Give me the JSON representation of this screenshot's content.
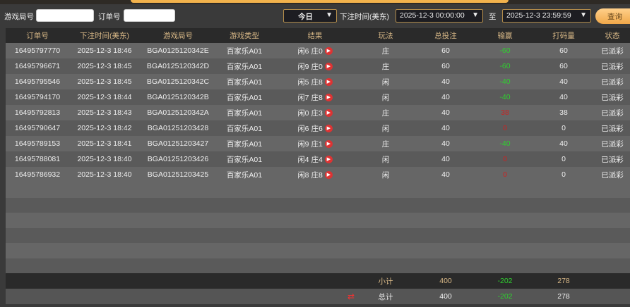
{
  "filters": {
    "round_label": "游戏局号",
    "round_value": "",
    "order_label": "订单号",
    "order_value": "",
    "period": "今日",
    "time_label": "下注时间(美东)",
    "start": "2025-12-3 00:00:00",
    "to_label": "至",
    "end": "2025-12-3 23:59:59",
    "query_button": "查询"
  },
  "columns": [
    "订单号",
    "下注时间(美东)",
    "游戏局号",
    "游戏类型",
    "结果",
    "玩法",
    "总投注",
    "输赢",
    "打码量",
    "状态"
  ],
  "rows": [
    [
      "16495797770",
      "2025-12-3 18:46",
      "BGA0125120342E",
      "百家乐A01",
      "闲6 庄0",
      "庄",
      "60",
      "-60",
      "60",
      "已派彩"
    ],
    [
      "16495796671",
      "2025-12-3 18:45",
      "BGA0125120342D",
      "百家乐A01",
      "闲9 庄0",
      "庄",
      "60",
      "-60",
      "60",
      "已派彩"
    ],
    [
      "16495795546",
      "2025-12-3 18:45",
      "BGA0125120342C",
      "百家乐A01",
      "闲5 庄8",
      "闲",
      "40",
      "-40",
      "40",
      "已派彩"
    ],
    [
      "16495794170",
      "2025-12-3 18:44",
      "BGA0125120342B",
      "百家乐A01",
      "闲7 庄8",
      "闲",
      "40",
      "-40",
      "40",
      "已派彩"
    ],
    [
      "16495792813",
      "2025-12-3 18:43",
      "BGA0125120342A",
      "百家乐A01",
      "闲0 庄3",
      "庄",
      "40",
      "38",
      "38",
      "已派彩"
    ],
    [
      "16495790647",
      "2025-12-3 18:42",
      "BGA01251203428",
      "百家乐A01",
      "闲6 庄6",
      "闲",
      "40",
      "0",
      "0",
      "已派彩"
    ],
    [
      "16495789153",
      "2025-12-3 18:41",
      "BGA01251203427",
      "百家乐A01",
      "闲9 庄1",
      "庄",
      "40",
      "-40",
      "40",
      "已派彩"
    ],
    [
      "16495788081",
      "2025-12-3 18:40",
      "BGA01251203426",
      "百家乐A01",
      "闲4 庄4",
      "闲",
      "40",
      "0",
      "0",
      "已派彩"
    ],
    [
      "16495786932",
      "2025-12-3 18:40",
      "BGA01251203425",
      "百家乐A01",
      "闲8 庄8",
      "闲",
      "40",
      "0",
      "0",
      "已派彩"
    ]
  ],
  "subtotal": {
    "label": "小计",
    "bet": "400",
    "winloss": "-202",
    "turnover": "278"
  },
  "total": {
    "label": "总计",
    "bet": "400",
    "winloss": "-202",
    "turnover": "278"
  },
  "colors": {
    "accent": "#f2b24c",
    "loss": "#2fd02f",
    "win": "#cc2222"
  }
}
